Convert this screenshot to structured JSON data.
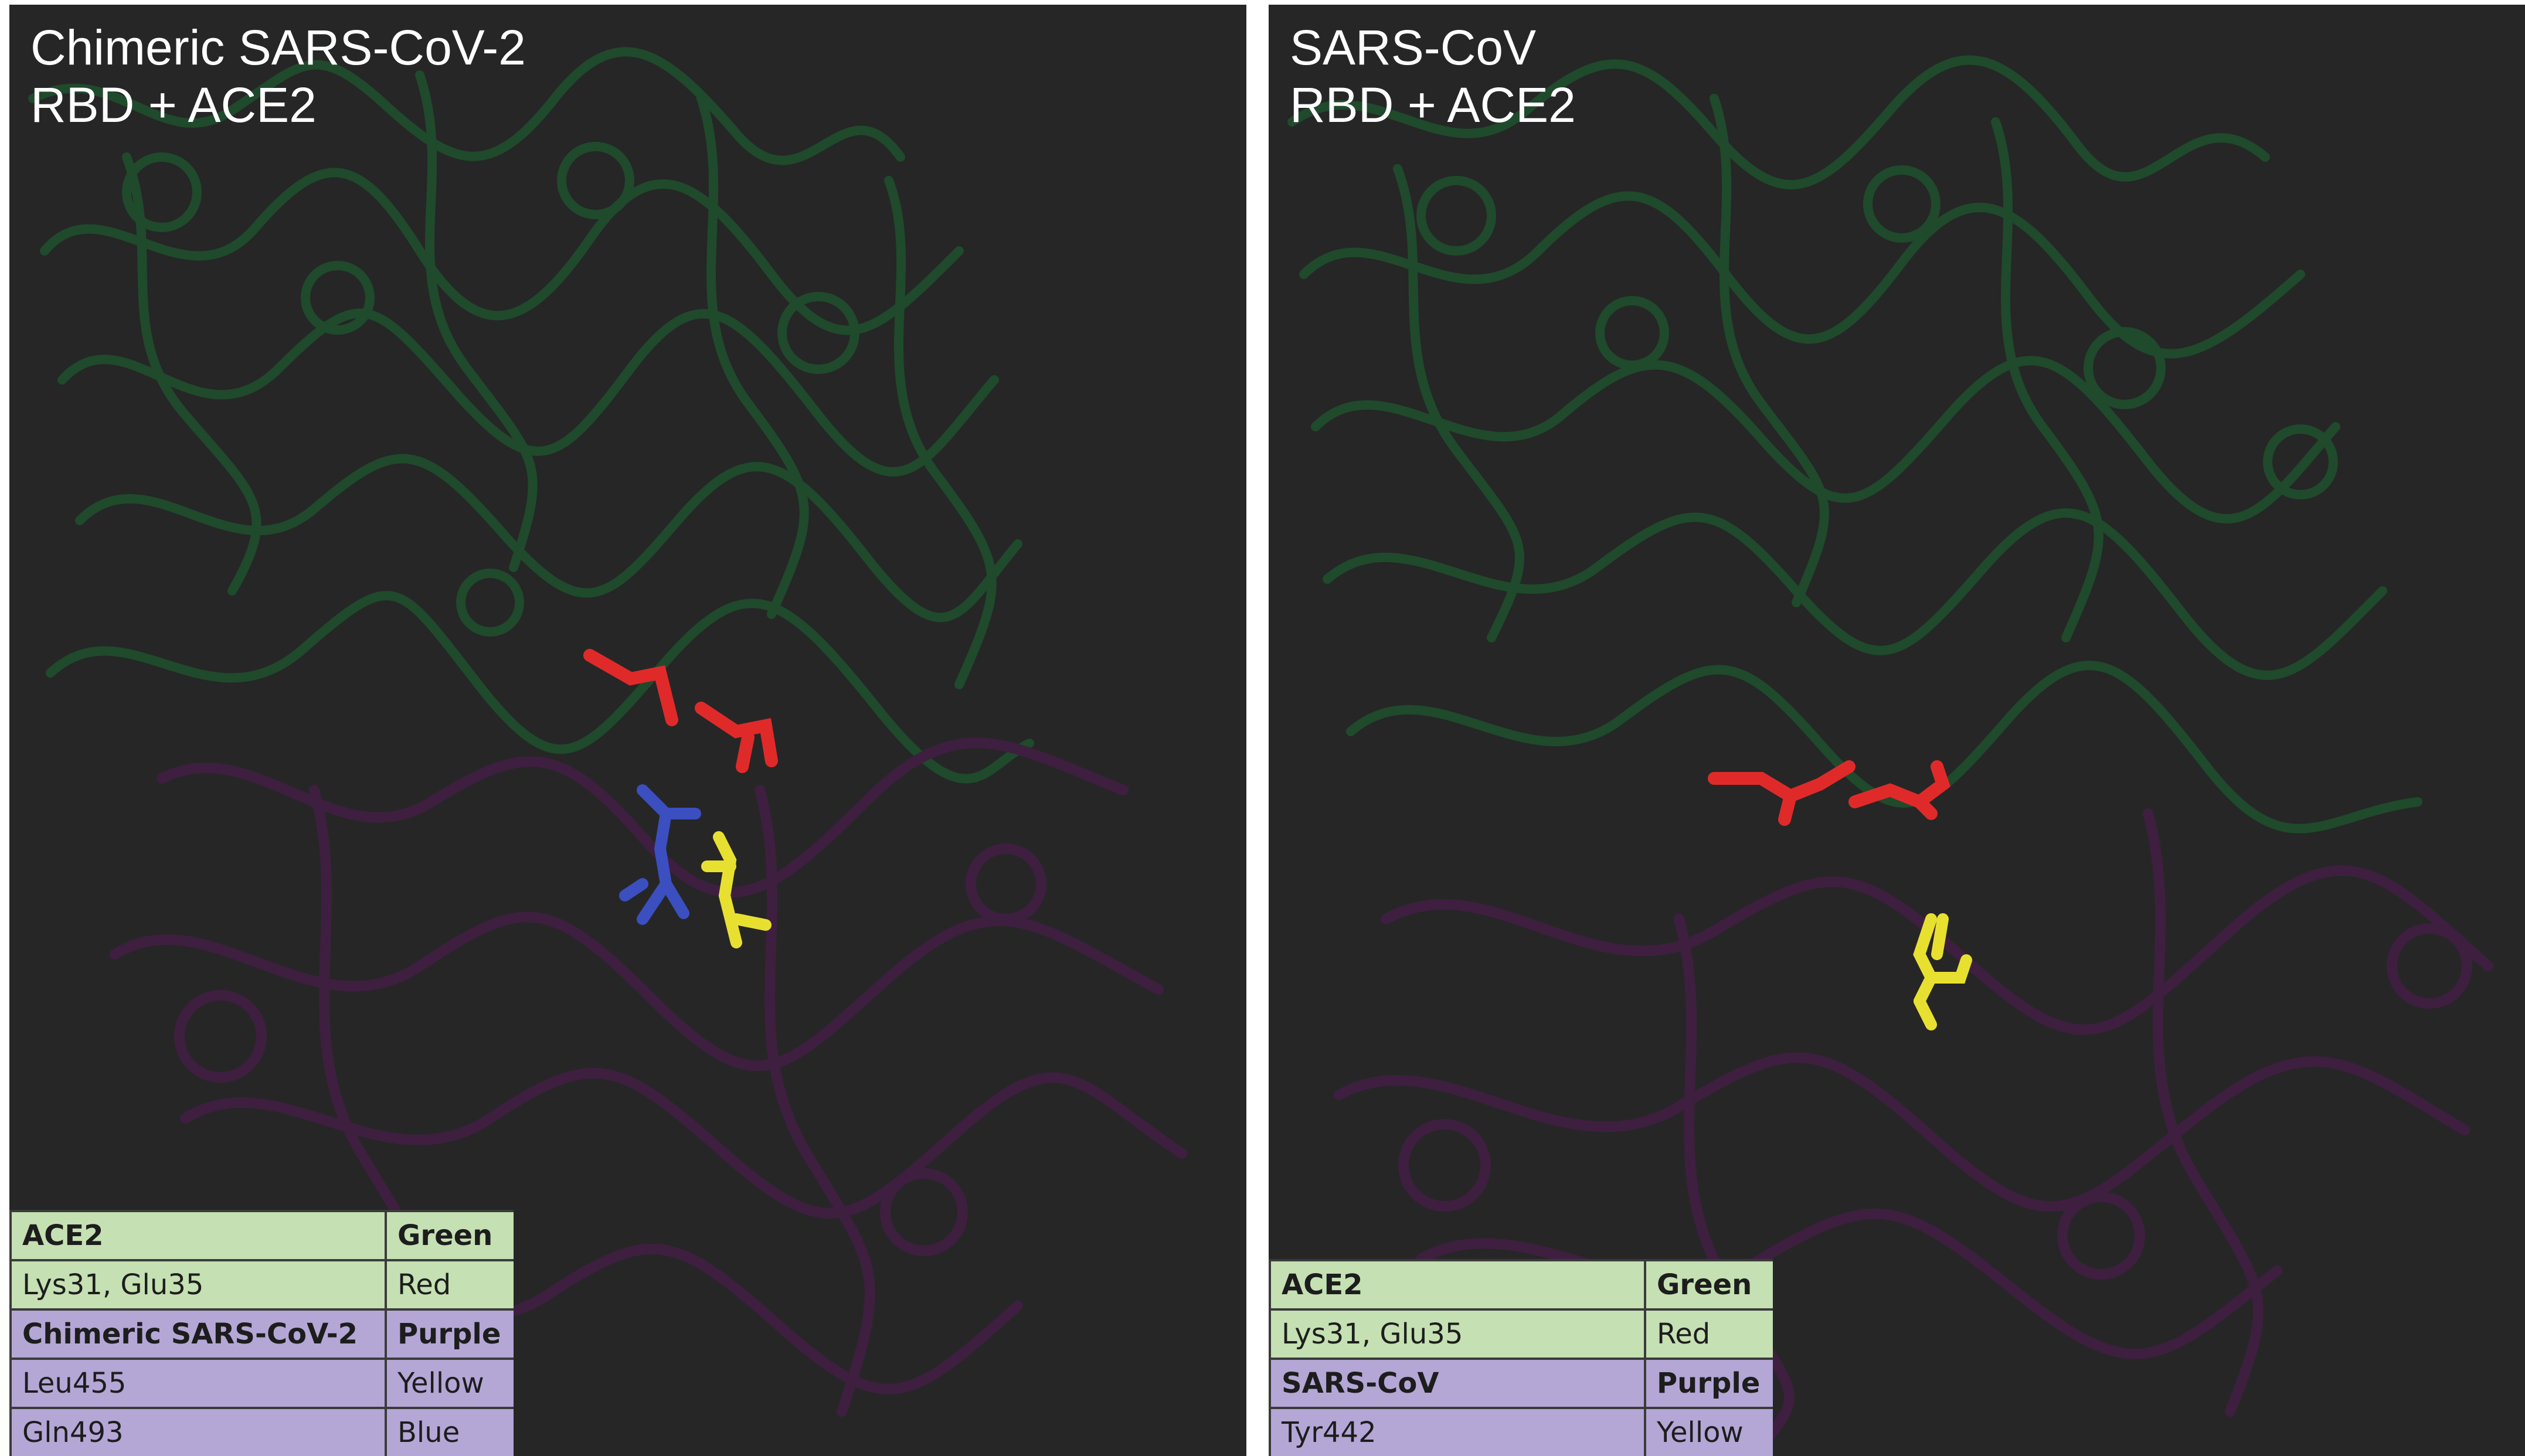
{
  "panels": [
    {
      "title_line1": "Chimeric SARS-CoV-2",
      "title_line2": "RBD + ACE2",
      "legend": [
        {
          "name": "ACE2",
          "color": "Green",
          "header": true,
          "group": "green"
        },
        {
          "name": "Lys31, Glu35",
          "color": "Red",
          "header": false,
          "group": "green"
        },
        {
          "name": "Chimeric SARS-CoV-2",
          "color": "Purple",
          "header": true,
          "group": "purple"
        },
        {
          "name": "Leu455",
          "color": "Yellow",
          "header": false,
          "group": "purple"
        },
        {
          "name": "Gln493",
          "color": "Blue",
          "header": false,
          "group": "purple"
        }
      ]
    },
    {
      "title_line1": "SARS-CoV",
      "title_line2": "RBD + ACE2",
      "legend": [
        {
          "name": "ACE2",
          "color": "Green",
          "header": true,
          "group": "green"
        },
        {
          "name": "Lys31, Glu35",
          "color": "Red",
          "header": false,
          "group": "green"
        },
        {
          "name": "SARS-CoV",
          "color": "Purple",
          "header": true,
          "group": "purple"
        },
        {
          "name": "Tyr442",
          "color": "Yellow",
          "header": false,
          "group": "purple"
        }
      ]
    }
  ],
  "colors": {
    "background": "#262626",
    "ace2_ribbon": "#1f4a2c",
    "rbd_ribbon": "#3e1f40",
    "residue_red": "#e02a2a",
    "residue_yellow": "#e8e030",
    "residue_blue": "#3b4fc0",
    "legend_green": "#c5e0b3",
    "legend_purple": "#b4a7d6"
  }
}
